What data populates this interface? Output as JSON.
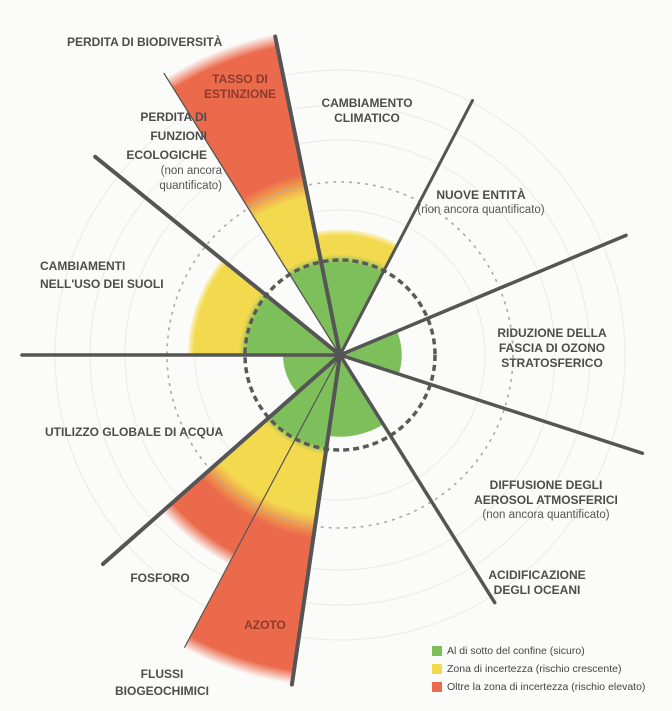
{
  "colors": {
    "safe": "#7dbf5b",
    "uncertainty": "#f3d94e",
    "high_risk": "#ec6a4c",
    "lines": "#555555",
    "text": "#4d4d4d"
  },
  "boundary_note": "levels expressed relative to the boundary (dashed circle = 1)",
  "wedges": [
    {
      "id": "functional",
      "level": null
    },
    {
      "id": "extinction",
      "level": 3.45
    },
    {
      "id": "climate",
      "level": 1.32
    },
    {
      "id": "novel",
      "level": null
    },
    {
      "id": "ozone",
      "level": 0.65
    },
    {
      "id": "aerosol",
      "level": null
    },
    {
      "id": "ocean",
      "level": 0.86
    },
    {
      "id": "nitrogen",
      "level": 3.5
    },
    {
      "id": "phosphorus",
      "level": 2.5
    },
    {
      "id": "water",
      "level": 0.6
    },
    {
      "id": "land",
      "level": 1.6
    }
  ],
  "labels": {
    "biodiversity": "PERDITA DI BIODIVERSITÀ",
    "extinction": [
      "TASSO DI",
      "ESTINZIONE"
    ],
    "functional": [
      "PERDITA DI",
      "FUNZIONI",
      "ECOLOGICHE"
    ],
    "functional_note": [
      "(non ancora",
      "quantificato)"
    ],
    "climate": [
      "CAMBIAMENTO",
      "CLIMATICO"
    ],
    "novel": "NUOVE ENTITÀ",
    "novel_note": "(non ancora quantificato)",
    "land": [
      "CAMBIAMENTI",
      "NELL'USO DEI SUOLI"
    ],
    "ozone": [
      "RIDUZIONE DELLA",
      "FASCIA DI OZONO",
      "STRATOSFERICO"
    ],
    "water": "UTILIZZO GLOBALE DI ACQUA",
    "aerosol": [
      "DIFFUSIONE DEGLI",
      "AEROSOL ATMOSFERICI"
    ],
    "aerosol_note": "(non ancora quantificato)",
    "phosphorus": "FOSFORO",
    "ocean": [
      "ACIDIFICAZIONE",
      "DEGLI OCEANI"
    ],
    "nitrogen": "AZOTO",
    "biogeochemical": [
      "FLUSSI",
      "BIOGEOCHIMICI"
    ]
  },
  "legend": [
    {
      "label": "Al di sotto del confine (sicuro)",
      "color": "#7dbf5b"
    },
    {
      "label": "Zona di incertezza (rischio crescente)",
      "color": "#f3d94e"
    },
    {
      "label": "Oltre la zona di incertezza (rischio elevato)",
      "color": "#ec6a4c"
    }
  ]
}
